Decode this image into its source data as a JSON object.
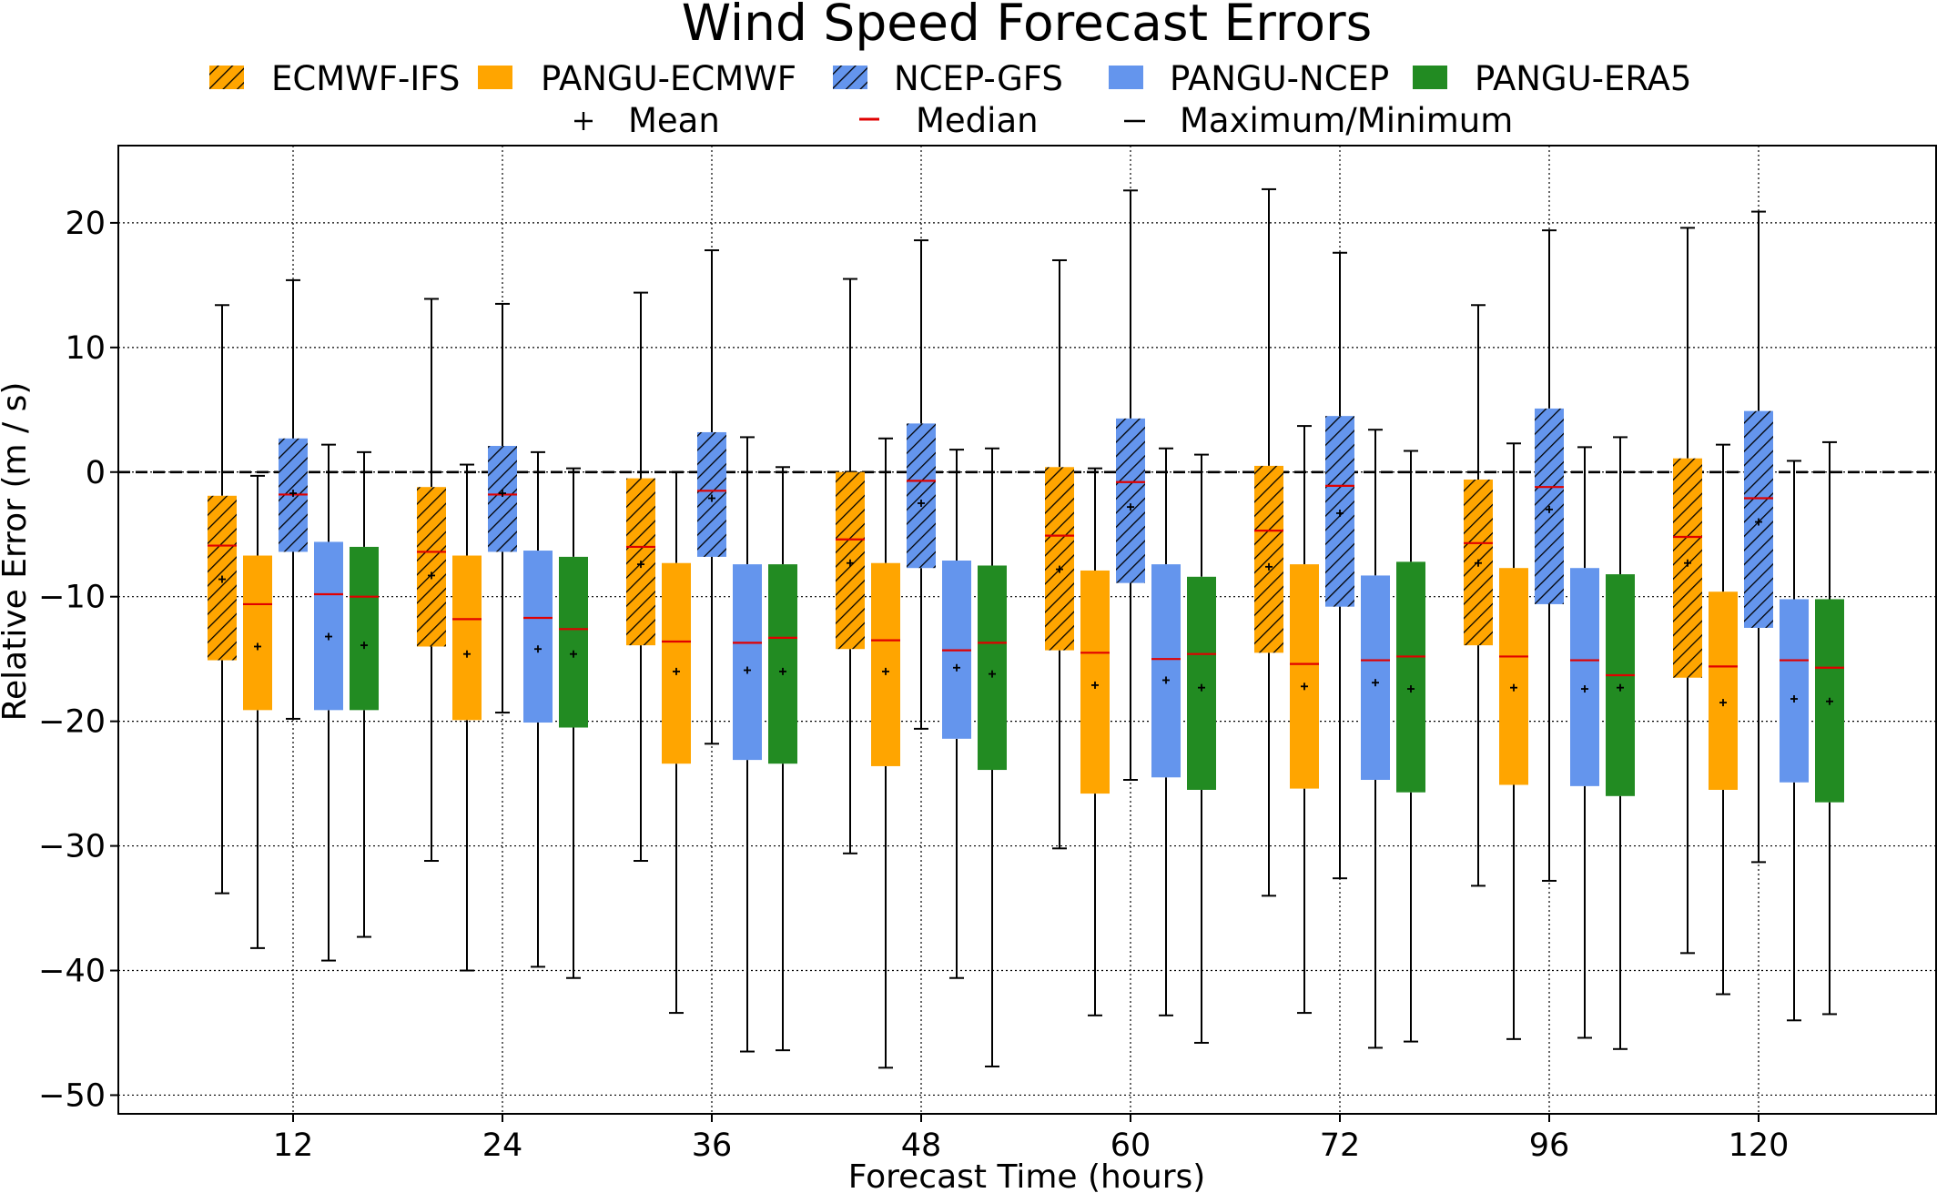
{
  "chart_data": {
    "type": "box",
    "title": "Wind Speed Forecast Errors",
    "xlabel": "Forecast Time (hours)",
    "ylabel": "Relative Error (m / s)",
    "ylim": [
      -51.5,
      26.2
    ],
    "yticks": [
      20,
      10,
      0,
      -10,
      -20,
      -30,
      -40,
      -50
    ],
    "ytick_labels": [
      "20",
      "10",
      "0",
      "−10",
      "−20",
      "−30",
      "−40",
      "−50"
    ],
    "grid": true,
    "reference_line": 0,
    "categories": [
      "12",
      "24",
      "36",
      "48",
      "60",
      "72",
      "96",
      "120"
    ],
    "legend": {
      "placement": "top-center",
      "series_items": [
        "ECMWF-IFS",
        "PANGU-ECMWF",
        "NCEP-GFS",
        "PANGU-NCEP",
        "PANGU-ERA5"
      ],
      "marker_items": [
        {
          "symbol": "+",
          "label": "Mean"
        },
        {
          "symbol": "–",
          "label": "Median"
        },
        {
          "symbol": "–",
          "label": "Maximum/Minimum"
        }
      ]
    },
    "colors": {
      "orange": "#ffa500",
      "blue": "#6495ed",
      "green": "#228b22",
      "median": "#e00000",
      "whisker": "#000000"
    },
    "series": [
      {
        "name": "ECMWF-IFS",
        "color": "#ffa500",
        "hatched": true,
        "boxes": [
          {
            "min": -33.8,
            "q1": -15.1,
            "median": -5.9,
            "q3": -1.9,
            "max": 13.4,
            "mean": -8.6
          },
          {
            "min": -31.2,
            "q1": -14.0,
            "median": -6.4,
            "q3": -1.2,
            "max": 13.9,
            "mean": -8.3
          },
          {
            "min": -31.2,
            "q1": -13.9,
            "median": -6.0,
            "q3": -0.5,
            "max": 14.4,
            "mean": -7.4
          },
          {
            "min": -30.6,
            "q1": -14.2,
            "median": -5.4,
            "q3": 0.0,
            "max": 15.5,
            "mean": -7.3
          },
          {
            "min": -30.2,
            "q1": -14.3,
            "median": -5.1,
            "q3": 0.4,
            "max": 17.0,
            "mean": -7.8
          },
          {
            "min": -34.0,
            "q1": -14.5,
            "median": -4.7,
            "q3": 0.5,
            "max": 22.7,
            "mean": -7.6
          },
          {
            "min": -33.2,
            "q1": -13.9,
            "median": -5.7,
            "q3": -0.6,
            "max": 13.4,
            "mean": -7.3
          },
          {
            "min": -38.6,
            "q1": -16.5,
            "median": -5.2,
            "q3": 1.1,
            "max": 19.6,
            "mean": -7.3
          }
        ]
      },
      {
        "name": "PANGU-ECMWF",
        "color": "#ffa500",
        "hatched": false,
        "boxes": [
          {
            "min": -38.2,
            "q1": -19.1,
            "median": -10.6,
            "q3": -6.7,
            "max": -0.3,
            "mean": -14.0
          },
          {
            "min": -40.0,
            "q1": -19.9,
            "median": -11.8,
            "q3": -6.7,
            "max": 0.6,
            "mean": -14.6
          },
          {
            "min": -43.4,
            "q1": -23.4,
            "median": -13.6,
            "q3": -7.3,
            "max": 0.0,
            "mean": -16.0
          },
          {
            "min": -47.8,
            "q1": -23.6,
            "median": -13.5,
            "q3": -7.3,
            "max": 2.7,
            "mean": -16.0
          },
          {
            "min": -43.6,
            "q1": -25.8,
            "median": -14.5,
            "q3": -7.9,
            "max": 0.3,
            "mean": -17.1
          },
          {
            "min": -43.4,
            "q1": -25.4,
            "median": -15.4,
            "q3": -7.4,
            "max": 3.7,
            "mean": -17.2
          },
          {
            "min": -45.5,
            "q1": -25.1,
            "median": -14.8,
            "q3": -7.7,
            "max": 2.3,
            "mean": -17.3
          },
          {
            "min": -41.9,
            "q1": -25.5,
            "median": -15.6,
            "q3": -9.6,
            "max": 2.2,
            "mean": -18.5
          }
        ]
      },
      {
        "name": "NCEP-GFS",
        "color": "#6495ed",
        "hatched": true,
        "boxes": [
          {
            "min": -19.8,
            "q1": -6.4,
            "median": -1.8,
            "q3": 2.7,
            "max": 15.4,
            "mean": -1.7
          },
          {
            "min": -19.3,
            "q1": -6.4,
            "median": -1.8,
            "q3": 2.1,
            "max": 13.5,
            "mean": -1.7
          },
          {
            "min": -21.8,
            "q1": -6.8,
            "median": -1.5,
            "q3": 3.2,
            "max": 17.8,
            "mean": -2.1
          },
          {
            "min": -20.6,
            "q1": -7.7,
            "median": -0.7,
            "q3": 3.9,
            "max": 18.6,
            "mean": -2.5
          },
          {
            "min": -24.7,
            "q1": -8.9,
            "median": -0.8,
            "q3": 4.3,
            "max": 22.6,
            "mean": -2.8
          },
          {
            "min": -32.6,
            "q1": -10.8,
            "median": -1.1,
            "q3": 4.5,
            "max": 17.6,
            "mean": -3.3
          },
          {
            "min": -32.8,
            "q1": -10.6,
            "median": -1.2,
            "q3": 5.1,
            "max": 19.4,
            "mean": -3.0
          },
          {
            "min": -31.3,
            "q1": -12.5,
            "median": -2.1,
            "q3": 4.9,
            "max": 20.9,
            "mean": -4.0
          }
        ]
      },
      {
        "name": "PANGU-NCEP",
        "color": "#6495ed",
        "hatched": false,
        "boxes": [
          {
            "min": -39.2,
            "q1": -19.1,
            "median": -9.8,
            "q3": -5.6,
            "max": 2.2,
            "mean": -13.2
          },
          {
            "min": -39.7,
            "q1": -20.1,
            "median": -11.7,
            "q3": -6.3,
            "max": 1.6,
            "mean": -14.2
          },
          {
            "min": -46.5,
            "q1": -23.1,
            "median": -13.7,
            "q3": -7.4,
            "max": 2.8,
            "mean": -15.9
          },
          {
            "min": -40.6,
            "q1": -21.4,
            "median": -14.3,
            "q3": -7.1,
            "max": 1.8,
            "mean": -15.7
          },
          {
            "min": -43.6,
            "q1": -24.5,
            "median": -15.0,
            "q3": -7.4,
            "max": 1.9,
            "mean": -16.7
          },
          {
            "min": -46.2,
            "q1": -24.7,
            "median": -15.1,
            "q3": -8.3,
            "max": 3.4,
            "mean": -16.9
          },
          {
            "min": -45.4,
            "q1": -25.2,
            "median": -15.1,
            "q3": -7.7,
            "max": 2.0,
            "mean": -17.4
          },
          {
            "min": -44.0,
            "q1": -24.9,
            "median": -15.1,
            "q3": -10.2,
            "max": 0.9,
            "mean": -18.2
          }
        ]
      },
      {
        "name": "PANGU-ERA5",
        "color": "#228b22",
        "hatched": false,
        "boxes": [
          {
            "min": -37.3,
            "q1": -19.1,
            "median": -10.0,
            "q3": -6.0,
            "max": 1.6,
            "mean": -13.9
          },
          {
            "min": -40.6,
            "q1": -20.5,
            "median": -12.6,
            "q3": -6.8,
            "max": 0.3,
            "mean": -14.6
          },
          {
            "min": -46.4,
            "q1": -23.4,
            "median": -13.3,
            "q3": -7.4,
            "max": 0.4,
            "mean": -16.0
          },
          {
            "min": -47.7,
            "q1": -23.9,
            "median": -13.7,
            "q3": -7.5,
            "max": 1.9,
            "mean": -16.2
          },
          {
            "min": -45.8,
            "q1": -25.5,
            "median": -14.6,
            "q3": -8.4,
            "max": 1.4,
            "mean": -17.3
          },
          {
            "min": -45.7,
            "q1": -25.7,
            "median": -14.8,
            "q3": -7.2,
            "max": 1.7,
            "mean": -17.4
          },
          {
            "min": -46.3,
            "q1": -26.0,
            "median": -16.3,
            "q3": -8.2,
            "max": 2.8,
            "mean": -17.3
          },
          {
            "min": -43.5,
            "q1": -26.5,
            "median": -15.7,
            "q3": -10.2,
            "max": 2.4,
            "mean": -18.4
          }
        ]
      }
    ]
  }
}
